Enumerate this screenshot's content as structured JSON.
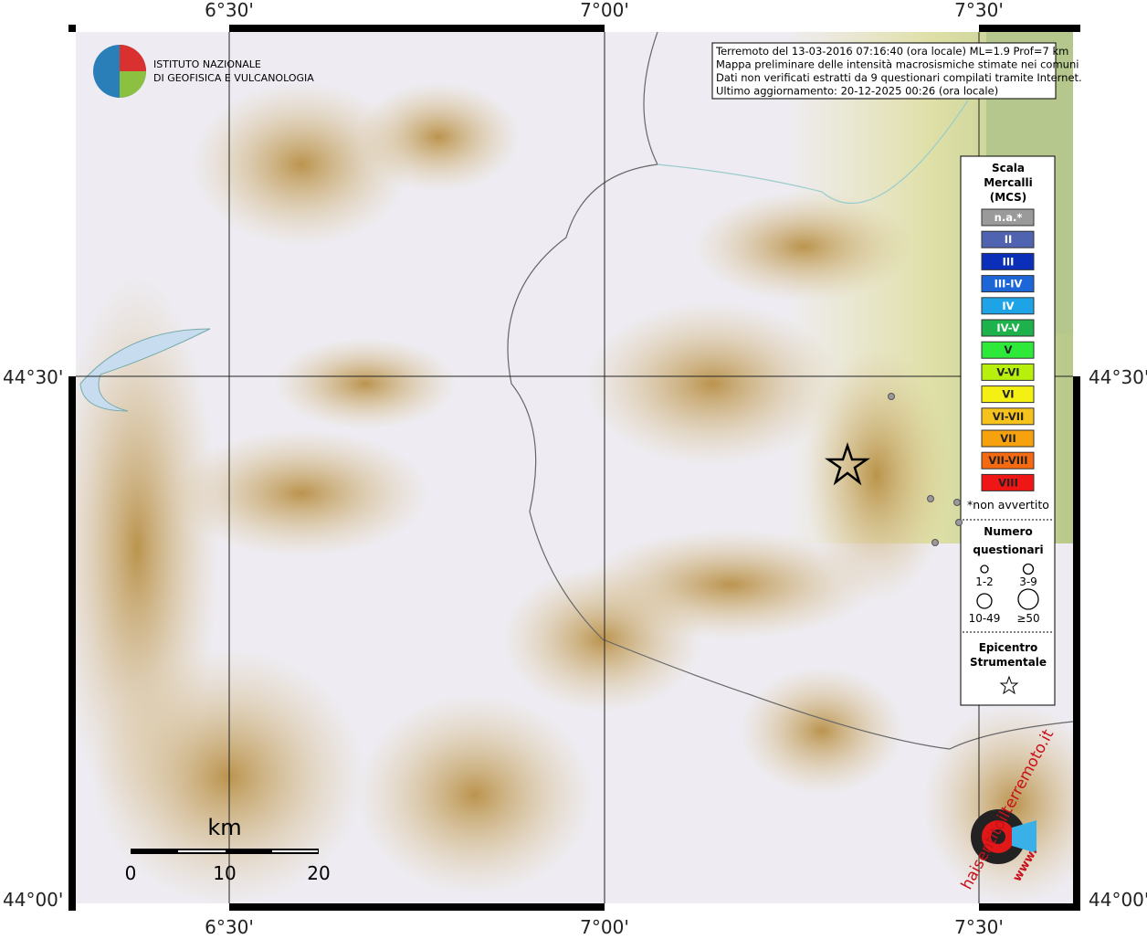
{
  "map": {
    "lon_labels": [
      "6°30'",
      "7°00'",
      "7°30'"
    ],
    "lat_labels": [
      "44°30'",
      "44°00'"
    ]
  },
  "info": [
    "Terremoto del 13-03-2016 07:16:40 (ora locale) ML=1.9 Prof=7 km",
    "Mappa preliminare delle intensità macrosismiche stimate nei comuni",
    "Dati non verificati estratti da 9 questionari compilati tramite Internet.",
    "Ultimo aggiornamento: 20-12-2025 00:26 (ora locale)"
  ],
  "logo": [
    "ISTITUTO NAZIONALE",
    "DI GEOFISICA E VULCANOLOGIA"
  ],
  "legend": {
    "title": [
      "Scala",
      "Mercalli",
      "(MCS)"
    ],
    "items": [
      {
        "label": "n.a.*",
        "color": "#9a9a9a"
      },
      {
        "label": "II",
        "color": "#4f63b0"
      },
      {
        "label": "III",
        "color": "#0b2fb8"
      },
      {
        "label": "III-IV",
        "color": "#1c66d8"
      },
      {
        "label": "IV",
        "color": "#1ea4e6"
      },
      {
        "label": "IV-V",
        "color": "#1db24c"
      },
      {
        "label": "V",
        "color": "#2ee83a"
      },
      {
        "label": "V-VI",
        "color": "#b6f00c"
      },
      {
        "label": "VI",
        "color": "#f4f014"
      },
      {
        "label": "VI-VII",
        "color": "#f6c21c"
      },
      {
        "label": "VII",
        "color": "#f6a20e"
      },
      {
        "label": "VII-VIII",
        "color": "#f56a10"
      },
      {
        "label": "VIII",
        "color": "#f01616"
      }
    ],
    "note": "*non avvertito",
    "count_title": [
      "Numero",
      "questionari"
    ],
    "counts": [
      "1-2",
      "3-9",
      "10-49",
      "≥50"
    ],
    "epi": [
      "Epicentro",
      "Strumentale"
    ]
  },
  "scale": {
    "unit": "km",
    "ticks": [
      "0",
      "10",
      "20"
    ]
  },
  "site": "haisentitoilterremoto.it",
  "www": "www."
}
